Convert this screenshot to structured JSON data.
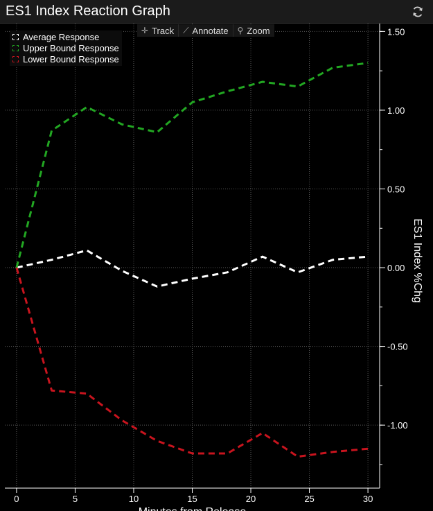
{
  "window": {
    "title": "ES1 Index Reaction Graph",
    "refresh_icon": "refresh-icon"
  },
  "toolbar": {
    "items": [
      {
        "label": "Track",
        "icon": "crosshair-icon"
      },
      {
        "label": "Annotate",
        "icon": "pencil-icon"
      },
      {
        "label": "Zoom",
        "icon": "magnifier-icon"
      }
    ]
  },
  "colors": {
    "background": "#000000",
    "average": "#ffffff",
    "upper": "#22a722",
    "lower": "#c8141e",
    "grid": "#5a5a5a"
  },
  "chart_data": {
    "type": "line",
    "xlabel": "Minutes from Release",
    "ylabel": "ES1 Index %Chg",
    "xlim": [
      -1,
      31
    ],
    "ylim": [
      -1.4,
      1.55
    ],
    "x_ticks": [
      0,
      5,
      10,
      15,
      20,
      25,
      30
    ],
    "y_ticks": [
      1.5,
      1.0,
      0.5,
      0.0,
      -0.5,
      -1.0
    ],
    "y_tick_labels": [
      "1.50",
      "1.00",
      "0.50",
      "0.00",
      "-0.50",
      "-1.00"
    ],
    "grid": true,
    "legend_position": "top-left",
    "x": [
      0,
      3,
      6,
      9,
      12,
      15,
      18,
      21,
      24,
      27,
      30
    ],
    "series": [
      {
        "name": "Average Response",
        "color": "#ffffff",
        "values": [
          0.0,
          0.05,
          0.11,
          -0.02,
          -0.12,
          -0.07,
          -0.03,
          0.07,
          -0.03,
          0.05,
          0.07
        ]
      },
      {
        "name": "Upper Bound Response",
        "color": "#22a722",
        "values": [
          0.0,
          0.87,
          1.02,
          0.91,
          0.86,
          1.05,
          1.12,
          1.18,
          1.15,
          1.27,
          1.3
        ]
      },
      {
        "name": "Lower Bound Response",
        "color": "#c8141e",
        "values": [
          0.0,
          -0.78,
          -0.8,
          -0.97,
          -1.1,
          -1.18,
          -1.18,
          -1.05,
          -1.2,
          -1.17,
          -1.15
        ]
      }
    ]
  }
}
